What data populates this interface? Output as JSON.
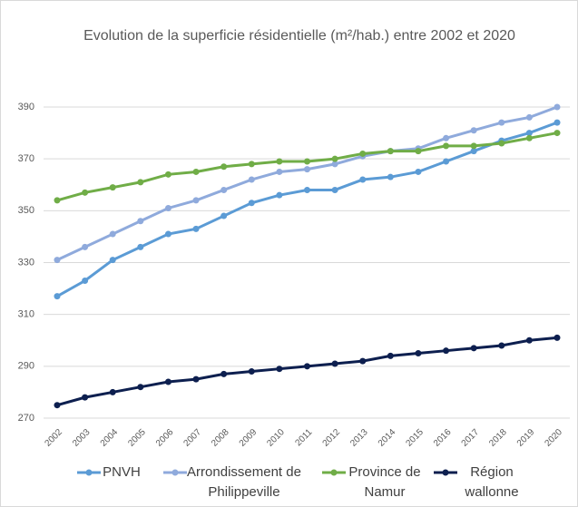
{
  "chart_data": {
    "type": "line",
    "title": "Evolution de la superficie résidentielle (m²/hab.) entre 2002 et 2020",
    "categories": [
      "2002",
      "2003",
      "2004",
      "2005",
      "2006",
      "2007",
      "2008",
      "2009",
      "2010",
      "2011",
      "2012",
      "2013",
      "2014",
      "2015",
      "2016",
      "2017",
      "2018",
      "2019",
      "2020"
    ],
    "series": [
      {
        "name": "PNVH",
        "color": "#5b9bd5",
        "values": [
          317,
          323,
          331,
          336,
          341,
          343,
          348,
          353,
          356,
          358,
          358,
          362,
          363,
          365,
          369,
          373,
          377,
          380,
          384
        ]
      },
      {
        "name": "Arrondissement de Philippeville",
        "color": "#8faadc",
        "values": [
          331,
          336,
          341,
          346,
          351,
          354,
          358,
          362,
          365,
          366,
          368,
          371,
          373,
          374,
          378,
          381,
          384,
          386,
          390
        ]
      },
      {
        "name": "Province de Namur",
        "color": "#70ad47",
        "values": [
          354,
          357,
          359,
          361,
          364,
          365,
          367,
          368,
          369,
          369,
          370,
          372,
          373,
          373,
          375,
          375,
          376,
          378,
          380
        ]
      },
      {
        "name": "Région wallonne",
        "color": "#0d1f4f",
        "values": [
          275,
          278,
          280,
          282,
          284,
          285,
          287,
          288,
          289,
          290,
          291,
          292,
          294,
          295,
          296,
          297,
          298,
          300,
          301
        ]
      }
    ],
    "ylim": [
      270,
      390
    ],
    "yticks": [
      270,
      290,
      310,
      330,
      350,
      370,
      390
    ],
    "grid": true,
    "legend": "bottom"
  }
}
